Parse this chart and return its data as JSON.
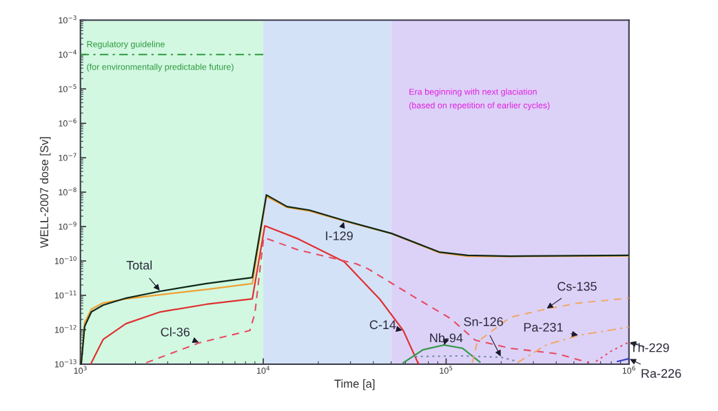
{
  "chart_data": {
    "type": "line",
    "xlabel": "Time [a]",
    "ylabel": "WELL-2007 dose [Sv]",
    "log": "xy",
    "grid": false,
    "legend": false,
    "xlim": [
      1000,
      1000000
    ],
    "ylim": [
      1e-13,
      0.001
    ],
    "xticks": [
      {
        "value": 1000,
        "label": "10$^{3}$"
      },
      {
        "value": 10000,
        "label": "10$^{4}$"
      },
      {
        "value": 100000,
        "label": "10$^{5}$"
      },
      {
        "value": 1000000,
        "label": "10$^{6}$"
      }
    ],
    "yticks": [
      {
        "value": 1e-13,
        "label": "10$^{−13}$"
      },
      {
        "value": 1e-12,
        "label": "10$^{−12}$"
      },
      {
        "value": 1e-11,
        "label": "10$^{−11}$"
      },
      {
        "value": 1e-10,
        "label": "10$^{−10}$"
      },
      {
        "value": 1e-09,
        "label": "10$^{−9}$"
      },
      {
        "value": 1e-08,
        "label": "10$^{−8}$"
      },
      {
        "value": 1e-07,
        "label": "10$^{−7}$"
      },
      {
        "value": 1e-06,
        "label": "10$^{−6}$"
      },
      {
        "value": 1e-05,
        "label": "10$^{−5}$"
      },
      {
        "value": 0.0001,
        "label": "10$^{−4}$"
      },
      {
        "value": 0.001,
        "label": "10$^{−3}$"
      }
    ],
    "bands": [
      {
        "axis": "x",
        "from": 1000,
        "to": 10000,
        "color": "#d2f8e2"
      },
      {
        "axis": "x",
        "from": 10000,
        "to": 50000,
        "color": "#d4e2f8"
      },
      {
        "axis": "x",
        "from": 50000,
        "to": 1000000,
        "color": "#dcd2f8",
        "label": "Era beginning with next glaciation\n(based on repetition of earlier cycles)"
      }
    ],
    "series": [
      {
        "type": "line",
        "color": "#2e9a3e",
        "line_style": "dashdot",
        "x": [
          1000,
          10000
        ],
        "values": [
          0.0001,
          0.0001
        ]
      },
      {
        "name": "I-129",
        "color": "#f0a030",
        "line_style": "solid",
        "x": [
          1010,
          1055,
          1148,
          1330,
          1800,
          3000,
          5000,
          8710,
          10400,
          13500,
          18000,
          27700,
          50400,
          91600,
          131000,
          224000,
          1000000
        ],
        "values": [
          1e-13,
          1.6e-12,
          4e-12,
          6e-12,
          8e-12,
          1.1e-11,
          1.5e-11,
          2.2e-11,
          7.5e-09,
          3.6e-09,
          2.8e-09,
          1.45e-09,
          6.2e-10,
          1.75e-10,
          1.38e-10,
          1.35e-10,
          1.4e-10
        ]
      },
      {
        "name": "Total",
        "color": "#102818",
        "line_style": "solid",
        "x": [
          1010,
          1055,
          1148,
          1330,
          1774,
          2735,
          4887,
          8710,
          10400,
          13500,
          17900,
          27700,
          50400,
          91600,
          131000,
          224000,
          1000000
        ],
        "values": [
          1e-13,
          1.26e-12,
          3.3e-12,
          5.2e-12,
          8.3e-12,
          1.32e-11,
          2.2e-11,
          3.3e-11,
          8.3e-09,
          3.8e-09,
          3e-09,
          1.5e-09,
          6.3e-10,
          1.82e-10,
          1.45e-10,
          1.38e-10,
          1.45e-10
        ]
      },
      {
        "name": "C-14",
        "color": "#e03030",
        "line_style": "solid",
        "x": [
          1138,
          1330,
          1774,
          2735,
          4887,
          8710,
          10200,
          15500,
          27700,
          43500,
          58300,
          70100,
          71300
        ],
        "values": [
          1e-13,
          5.2e-13,
          1.5e-12,
          3.3e-12,
          5.5e-12,
          7.9e-12,
          1.05e-09,
          4.4e-10,
          9.5e-11,
          7.6e-12,
          9.5e-13,
          1.1e-13,
          1e-13
        ]
      },
      {
        "name": "Cl-36",
        "color": "#e84a60",
        "line_style": "dashed",
        "x": [
          2290,
          4490,
          8450,
          9000,
          10050,
          15500,
          32100,
          37200,
          67600,
          106000,
          144000,
          224000,
          407000,
          603000
        ],
        "values": [
          1.1e-13,
          4.2e-13,
          9.5e-13,
          3e-12,
          4.8e-10,
          2.1e-10,
          8.3e-11,
          6e-11,
          8.7e-12,
          2.1e-12,
          5e-13,
          2.9e-13,
          2e-13,
          1.1e-13
        ]
      },
      {
        "name": "Nb-94",
        "color": "#3a9a50",
        "line_style": "solid",
        "x": [
          58300,
          74500,
          97500,
          123000,
          153000
        ],
        "values": [
          1.1e-13,
          2.6e-13,
          3.6e-13,
          2.9e-13,
          1.15e-13
        ]
      },
      {
        "name": "Sn-126",
        "color": "#7a88a8",
        "line_style": "dotted",
        "x": [
          67600,
          123000,
          200000,
          245000
        ],
        "values": [
          1.66e-13,
          1.74e-13,
          1.58e-13,
          1.2e-13
        ]
      },
      {
        "name": "Cs-135",
        "color": "#f0a868",
        "line_style": "dashed",
        "x": [
          139000,
          148000,
          224000,
          352000,
          533000,
          1000000
        ],
        "values": [
          1.1e-13,
          4.4e-13,
          2.3e-12,
          4e-12,
          6e-12,
          8.3e-12
        ]
      },
      {
        "name": "Pa-231",
        "color": "#f0a868",
        "line_style": "dashdot",
        "x": [
          245000,
          352000,
          533000,
          1000000
        ],
        "values": [
          1.1e-13,
          3.6e-13,
          6.9e-13,
          1.2e-12
        ]
      },
      {
        "name": "Th-229",
        "color": "#e84a60",
        "line_style": "dotted",
        "x": [
          660000,
          789000,
          1000000
        ],
        "values": [
          1.2e-13,
          2.3e-13,
          4.4e-13
        ]
      },
      {
        "name": "Ra-226",
        "color": "#3040c0",
        "line_style": "solid",
        "x": [
          867000,
          1000000
        ],
        "values": [
          1.2e-13,
          1.45e-13
        ]
      }
    ],
    "annotations": [
      "Regulatory guideline",
      "(for environmentally predictable future)"
    ]
  }
}
